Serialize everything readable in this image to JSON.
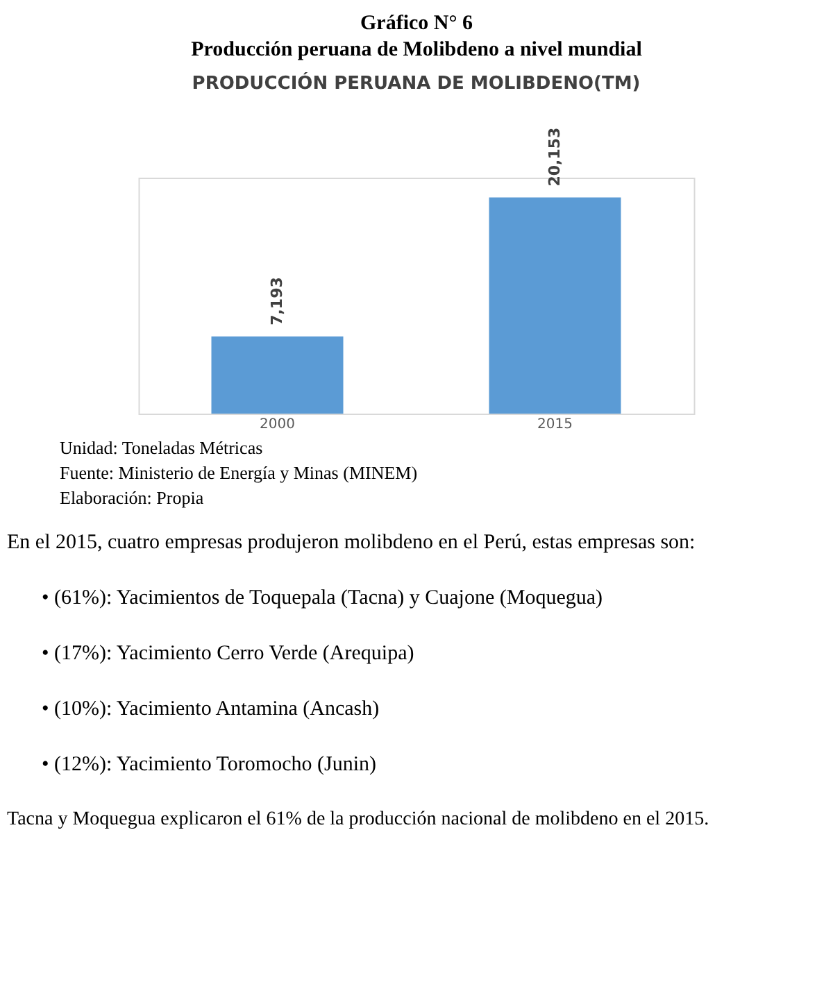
{
  "chart_data": {
    "type": "bar",
    "title": "PRODUCCIÓN PERUANA DE MOLIBDENO(TM)",
    "categories": [
      "2000",
      "2015"
    ],
    "values": [
      7193,
      20153
    ],
    "value_labels": [
      "7,193",
      "20,153"
    ],
    "color": "#5b9bd5",
    "grid": false,
    "annotations": [
      "Gráfico N° 6",
      "Producción peruana de Molibdeno a nivel mundial",
      "Unidad: Toneladas  Métricas",
      "Fuente: Ministerio de Energía y Minas (MINEM)",
      "Elaboración: Propia",
      "En el 2015, cuatro empresas produjeron molibdeno en el Perú, estas empresas son:",
      "•   (61%): Yacimientos de Toquepala (Tacna) y Cuajone (Moquegua)",
      "•   (17%): Yacimiento Cerro Verde (Arequipa)",
      "•   (10%): Yacimiento Antamina (Ancash)",
      "•   (12%): Yacimiento Toromocho (Junin)",
      "Tacna y Moquegua explicaron el 61% de la producción nacional de molibdeno en el 2015."
    ]
  }
}
